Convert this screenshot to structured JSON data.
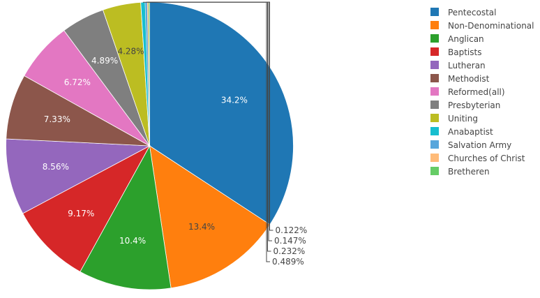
{
  "chart_data": {
    "type": "pie",
    "title": "",
    "legend_position": "right",
    "slices": [
      {
        "label": "Pentecostal",
        "value": 34.2,
        "display": "34.2%",
        "color": "#1f77b4"
      },
      {
        "label": "Non-Denominational",
        "value": 13.4,
        "display": "13.4%",
        "color": "#ff7f0e"
      },
      {
        "label": "Anglican",
        "value": 10.4,
        "display": "10.4%",
        "color": "#2ca02c"
      },
      {
        "label": "Baptists",
        "value": 9.17,
        "display": "9.17%",
        "color": "#d62728"
      },
      {
        "label": "Lutheran",
        "value": 8.56,
        "display": "8.56%",
        "color": "#9467bd"
      },
      {
        "label": "Methodist",
        "value": 7.33,
        "display": "7.33%",
        "color": "#8c564b"
      },
      {
        "label": "Reformed(all)",
        "value": 6.72,
        "display": "6.72%",
        "color": "#e377c2"
      },
      {
        "label": "Presbyterian",
        "value": 4.89,
        "display": "4.89%",
        "color": "#7f7f7f"
      },
      {
        "label": "Uniting",
        "value": 4.28,
        "display": "4.28%",
        "color": "#bcbd22"
      },
      {
        "label": "Anabaptist",
        "value": 0.489,
        "display": "0.489%",
        "color": "#17becf"
      },
      {
        "label": "Salvation Army",
        "value": 0.232,
        "display": "0.232%",
        "color": "#57a6dc"
      },
      {
        "label": "Churches of Christ",
        "value": 0.147,
        "display": "0.147%",
        "color": "#ffbb78"
      },
      {
        "label": "Bretheren",
        "value": 0.122,
        "display": "0.122%",
        "color": "#66cc66"
      }
    ]
  }
}
